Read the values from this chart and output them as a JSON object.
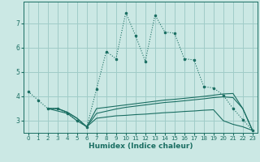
{
  "xlabel": "Humidex (Indice chaleur)",
  "bg_color": "#cbe8e4",
  "grid_color": "#a0ccc8",
  "line_color": "#1a6e62",
  "xlim": [
    -0.5,
    23.5
  ],
  "ylim": [
    2.5,
    7.9
  ],
  "xticks": [
    0,
    1,
    2,
    3,
    4,
    5,
    6,
    7,
    8,
    9,
    10,
    11,
    12,
    13,
    14,
    15,
    16,
    17,
    18,
    19,
    20,
    21,
    22,
    23
  ],
  "yticks": [
    3,
    4,
    5,
    6,
    7
  ],
  "main_x": [
    0,
    1,
    2,
    3,
    4,
    5,
    6,
    7,
    8,
    9,
    10,
    11,
    12,
    13,
    14,
    15,
    16,
    17,
    18,
    19,
    20,
    21,
    22,
    23
  ],
  "main_y": [
    4.2,
    3.85,
    3.5,
    3.5,
    3.3,
    3.0,
    2.75,
    4.3,
    5.85,
    5.55,
    7.45,
    6.5,
    5.45,
    7.35,
    6.65,
    6.6,
    5.55,
    5.5,
    4.4,
    4.35,
    4.05,
    3.5,
    3.05,
    2.6
  ],
  "line2_x": [
    2,
    3,
    4,
    5,
    6,
    7,
    9,
    10,
    11,
    12,
    13,
    14,
    15,
    16,
    17,
    18,
    19,
    20,
    21,
    22,
    23
  ],
  "line2_y": [
    3.5,
    3.5,
    3.35,
    3.1,
    2.75,
    3.5,
    3.6,
    3.65,
    3.7,
    3.75,
    3.8,
    3.85,
    3.88,
    3.92,
    3.96,
    4.0,
    4.05,
    4.1,
    4.12,
    3.5,
    2.6
  ],
  "line3_x": [
    2,
    3,
    4,
    5,
    6,
    7,
    9,
    10,
    11,
    12,
    13,
    14,
    15,
    16,
    17,
    18,
    19,
    20,
    21,
    22,
    23
  ],
  "line3_y": [
    3.5,
    3.5,
    3.35,
    3.1,
    2.75,
    3.3,
    3.48,
    3.55,
    3.6,
    3.65,
    3.7,
    3.75,
    3.78,
    3.82,
    3.86,
    3.9,
    3.95,
    3.98,
    3.95,
    3.5,
    2.6
  ],
  "line4_x": [
    2,
    3,
    4,
    5,
    6,
    7,
    9,
    10,
    11,
    12,
    13,
    14,
    15,
    16,
    17,
    18,
    19,
    20,
    21,
    22,
    23
  ],
  "line4_y": [
    3.5,
    3.4,
    3.3,
    3.0,
    2.75,
    3.1,
    3.2,
    3.22,
    3.25,
    3.27,
    3.3,
    3.33,
    3.35,
    3.38,
    3.4,
    3.43,
    3.45,
    3.0,
    2.85,
    2.75,
    2.6
  ]
}
